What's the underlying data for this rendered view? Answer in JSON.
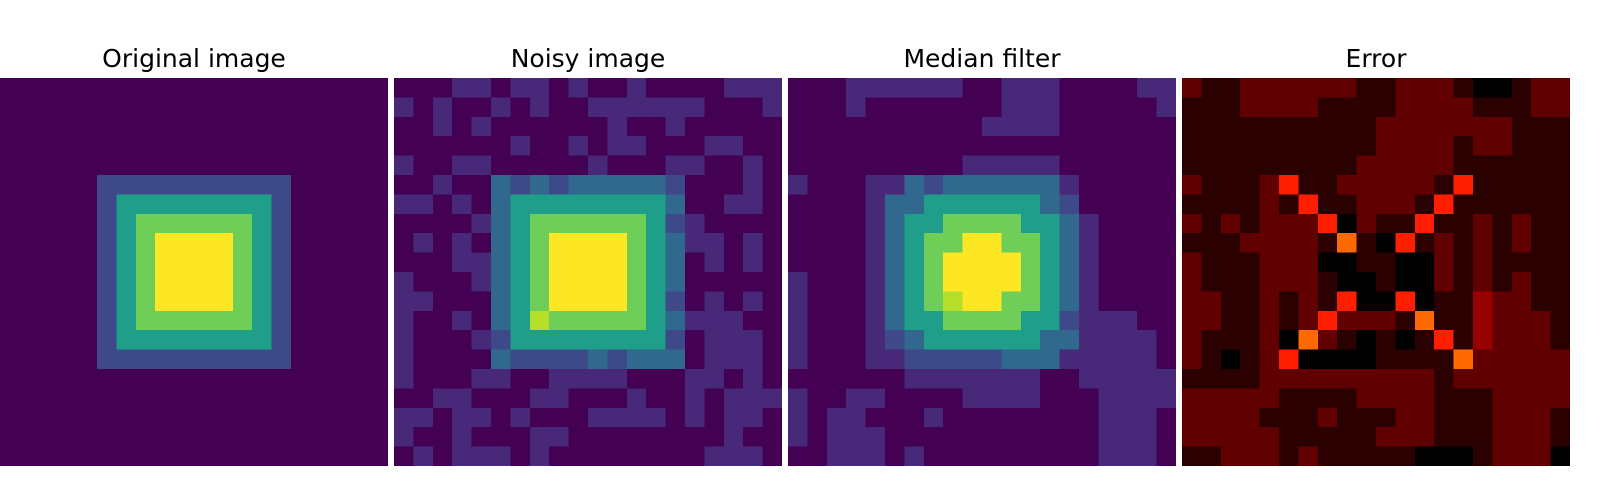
{
  "colors": {
    "viridis": [
      "#440154",
      "#482878",
      "#3e4989",
      "#31688e",
      "#26828e",
      "#1f9e89",
      "#35b779",
      "#6ece58",
      "#b5de2b",
      "#fde725"
    ],
    "hot": [
      "#000000",
      "#2b0000",
      "#600000",
      "#990000",
      "#d40000",
      "#ff1f00",
      "#ff6a00",
      "#ffb000",
      "#fff200",
      "#ffffff"
    ]
  },
  "chart_data": [
    {
      "type": "heatmap",
      "title": "Original image",
      "colormap": "viridis",
      "grid": false,
      "axes": false,
      "size": [
        20,
        20
      ],
      "generator": {
        "kind": "nested-squares",
        "center": 9.5,
        "levels": [
          [
            1.5,
            1.0
          ],
          [
            2.5,
            0.75
          ],
          [
            3.5,
            0.5
          ],
          [
            4.5,
            0.25
          ],
          [
            100,
            0.0
          ]
        ]
      },
      "value_range": [
        0,
        1
      ]
    },
    {
      "type": "heatmap",
      "title": "Noisy image",
      "colormap": "viridis",
      "grid": false,
      "axes": false,
      "size": [
        20,
        20
      ],
      "generator": {
        "kind": "nested-squares-noise",
        "noise": 0.09,
        "seed": 7
      },
      "value_range": [
        0,
        1
      ]
    },
    {
      "type": "heatmap",
      "title": "Median filter",
      "colormap": "viridis",
      "grid": false,
      "axes": false,
      "size": [
        20,
        20
      ],
      "generator": {
        "kind": "median-of-noisy",
        "window": 3
      },
      "value_range": [
        0,
        1
      ]
    },
    {
      "type": "heatmap",
      "title": "Error",
      "colormap": "hot",
      "grid": false,
      "axes": false,
      "size": [
        20,
        20
      ],
      "generator": {
        "kind": "abs-error",
        "of": "Median filter",
        "vs": "Original image"
      },
      "value_range": [
        0,
        0.3
      ]
    }
  ]
}
